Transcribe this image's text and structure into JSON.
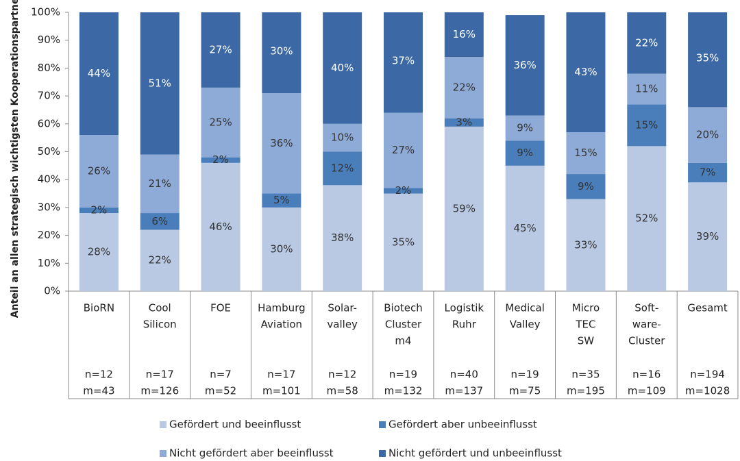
{
  "chart_data": {
    "type": "stacked_bar",
    "ylabel": "Anteil an allen strategisch wichtigsten Kooperationspartnern",
    "categories": [
      [
        "BioRN"
      ],
      [
        "Cool",
        "Silicon"
      ],
      [
        "FOE"
      ],
      [
        "Hamburg",
        "Aviation"
      ],
      [
        "Solar-",
        "valley"
      ],
      [
        "Biotech",
        "Cluster",
        "m4"
      ],
      [
        "Logistik",
        "Ruhr"
      ],
      [
        "Medical",
        "Valley"
      ],
      [
        "Micro",
        "TEC",
        "SW"
      ],
      [
        "Soft-",
        "ware-",
        "Cluster"
      ],
      [
        "Gesamt"
      ]
    ],
    "sample_sizes": [
      [
        "n=12",
        "m=43"
      ],
      [
        "n=17",
        "m=126"
      ],
      [
        "n=7",
        "m=52"
      ],
      [
        "n=17",
        "m=101"
      ],
      [
        "n=12",
        "m=58"
      ],
      [
        "n=19",
        "m=132"
      ],
      [
        "n=40",
        "m=137"
      ],
      [
        "n=19",
        "m=75"
      ],
      [
        "n=35",
        "m=195"
      ],
      [
        "n=16",
        "m=109"
      ],
      [
        "n=194",
        "m=1028"
      ]
    ],
    "series": [
      {
        "name": "Gefördert und beeinflusst",
        "color": "#b9c9e4",
        "label_color": "#333333",
        "values": [
          28,
          22,
          46,
          30,
          38,
          35,
          59,
          45,
          33,
          52,
          39
        ],
        "value_labels": [
          "28%",
          "22%",
          "46%",
          "30%",
          "38%",
          "35%",
          "59%",
          "45%",
          "33%",
          "52%",
          "39%"
        ]
      },
      {
        "name": "Gefördert aber unbeeinflusst",
        "color": "#4a7ebb",
        "label_color": "#333333",
        "values": [
          2,
          6,
          2,
          5,
          12,
          2,
          3,
          9,
          9,
          15,
          7
        ],
        "value_labels": [
          "2%",
          "6%",
          "2%",
          "5%",
          "12%",
          "2%",
          "3%",
          "9%",
          "9%",
          "15%",
          "7%"
        ]
      },
      {
        "name": "Nicht gefördert aber beeinflusst",
        "color": "#8eaad6",
        "label_color": "#333333",
        "values": [
          26,
          21,
          25,
          36,
          10,
          27,
          22,
          9,
          15,
          11,
          20
        ],
        "value_labels": [
          "26%",
          "21%",
          "25%",
          "36%",
          "10%",
          "27%",
          "22%",
          "9%",
          "15%",
          "11%",
          "20%"
        ]
      },
      {
        "name": "Nicht gefördert und unbeeinflusst",
        "color": "#3c69a5",
        "label_color": "#ffffff",
        "values": [
          44,
          51,
          27,
          30,
          40,
          37,
          16,
          36,
          43,
          22,
          35
        ],
        "value_labels": [
          "44%",
          "51%",
          "27%",
          "30%",
          "40%",
          "37%",
          "16%",
          "36%",
          "43%",
          "22%",
          "35%"
        ]
      }
    ],
    "ylim": [
      0,
      100
    ],
    "yticks": [
      {
        "value": 0,
        "label": "0%"
      },
      {
        "value": 10,
        "label": "10%"
      },
      {
        "value": 20,
        "label": "20%"
      },
      {
        "value": 30,
        "label": "30%"
      },
      {
        "value": 40,
        "label": "40%"
      },
      {
        "value": 50,
        "label": "50%"
      },
      {
        "value": 60,
        "label": "60%"
      },
      {
        "value": 70,
        "label": "70%"
      },
      {
        "value": 80,
        "label": "80%"
      },
      {
        "value": 90,
        "label": "90%"
      },
      {
        "value": 100,
        "label": "100%"
      }
    ],
    "legend": "bottom"
  }
}
